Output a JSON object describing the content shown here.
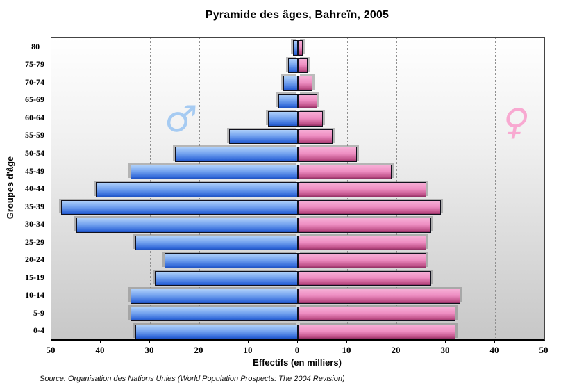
{
  "title": "Pyramide des âges, Bahreïn, 2005",
  "source": "Source: Organisation des Nations Unies (World Population Prospects: The 2004 Revision)",
  "axes": {
    "x_label": "Effectifs (en milliers)",
    "y_label": "Groupes d'âge",
    "x_tick_labels": [
      "50",
      "40",
      "30",
      "20",
      "10",
      "0",
      "10",
      "20",
      "30",
      "40",
      "50"
    ]
  },
  "legend": {
    "male_symbol": "♂",
    "female_symbol": "♀"
  },
  "colors": {
    "male_light": "#aed0fa",
    "male_dark": "#2053c0",
    "male_symbol": "#a6cbf2",
    "female_light": "#f7aed6",
    "female_dark": "#8e2f62",
    "female_symbol": "#f8a9d1",
    "plot_bg_top": "#ffffff",
    "plot_bg_bottom": "#c7c7c7"
  },
  "chart_data": {
    "type": "bar",
    "subtype": "population-pyramid",
    "title": "Pyramide des âges, Bahreïn, 2005",
    "xlabel": "Effectifs (en milliers)",
    "ylabel": "Groupes d'âge",
    "unit": "milliers (thousands)",
    "xlim_each_side": [
      0,
      50
    ],
    "x_tick_interval": 10,
    "grid": "vertical dotted gridlines at 10,20,30,40 on both sides",
    "legend_position": "in-plot symbols: ♂ upper-left, ♀ upper-right",
    "categories_top_to_bottom": [
      "80+",
      "75-79",
      "70-74",
      "65-69",
      "60-64",
      "55-59",
      "50-54",
      "45-49",
      "40-44",
      "35-39",
      "30-34",
      "25-29",
      "20-24",
      "15-19",
      "10-14",
      "5-9",
      "0-4"
    ],
    "series": [
      {
        "name": "hommes",
        "side": "left",
        "symbol": "♂",
        "values": [
          1,
          2,
          3,
          4,
          6,
          14,
          25,
          34,
          41,
          48,
          45,
          33,
          27,
          29,
          34,
          34,
          33
        ]
      },
      {
        "name": "femmes",
        "side": "right",
        "symbol": "♀",
        "values": [
          1,
          2,
          3,
          4,
          5,
          7,
          12,
          19,
          26,
          29,
          27,
          26,
          26,
          27,
          33,
          32,
          32
        ]
      }
    ]
  }
}
